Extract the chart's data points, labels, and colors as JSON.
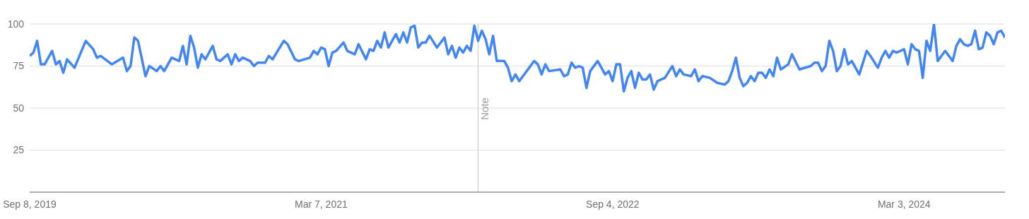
{
  "chart_data": {
    "type": "line",
    "x": [
      "2019-09-08",
      "2019-09-15",
      "2019-09-22",
      "2019-09-29",
      "2019-10-06",
      "2019-10-20",
      "2019-10-27",
      "2019-11-03",
      "2019-11-10",
      "2019-11-17",
      "2019-12-01",
      "2019-12-22",
      "2020-01-05",
      "2020-01-12",
      "2020-01-19",
      "2020-02-09",
      "2020-03-01",
      "2020-03-08",
      "2020-03-15",
      "2020-03-22",
      "2020-03-29",
      "2020-04-12",
      "2020-04-19",
      "2020-05-03",
      "2020-05-10",
      "2020-05-17",
      "2020-05-31",
      "2020-06-14",
      "2020-06-21",
      "2020-06-28",
      "2020-07-05",
      "2020-07-12",
      "2020-07-19",
      "2020-07-26",
      "2020-08-02",
      "2020-08-16",
      "2020-08-23",
      "2020-08-30",
      "2020-09-13",
      "2020-09-20",
      "2020-09-27",
      "2020-10-04",
      "2020-10-11",
      "2020-10-25",
      "2020-11-01",
      "2020-11-08",
      "2020-11-22",
      "2020-11-29",
      "2020-12-06",
      "2020-12-27",
      "2021-01-03",
      "2021-01-17",
      "2021-01-24",
      "2021-02-14",
      "2021-02-21",
      "2021-02-28",
      "2021-03-07",
      "2021-03-14",
      "2021-03-21",
      "2021-03-28",
      "2021-04-04",
      "2021-04-18",
      "2021-04-25",
      "2021-05-09",
      "2021-05-16",
      "2021-05-30",
      "2021-06-06",
      "2021-06-13",
      "2021-06-20",
      "2021-06-27",
      "2021-07-04",
      "2021-07-11",
      "2021-07-25",
      "2021-08-01",
      "2021-08-08",
      "2021-08-15",
      "2021-08-22",
      "2021-08-29",
      "2021-09-05",
      "2021-09-12",
      "2021-09-19",
      "2021-09-26",
      "2021-10-10",
      "2021-10-24",
      "2021-10-31",
      "2021-11-07",
      "2021-11-14",
      "2021-11-21",
      "2021-11-28",
      "2021-12-05",
      "2021-12-12",
      "2021-12-19",
      "2021-12-26",
      "2022-01-02",
      "2022-01-09",
      "2022-01-16",
      "2022-01-23",
      "2022-01-30",
      "2022-02-13",
      "2022-02-20",
      "2022-02-27",
      "2022-03-06",
      "2022-03-13",
      "2022-04-10",
      "2022-04-17",
      "2022-04-24",
      "2022-05-01",
      "2022-05-08",
      "2022-05-29",
      "2022-06-05",
      "2022-06-12",
      "2022-06-19",
      "2022-06-26",
      "2022-07-03",
      "2022-07-10",
      "2022-07-17",
      "2022-07-24",
      "2022-08-07",
      "2022-08-21",
      "2022-08-28",
      "2022-09-04",
      "2022-09-11",
      "2022-09-18",
      "2022-09-25",
      "2022-10-02",
      "2022-10-09",
      "2022-10-16",
      "2022-10-23",
      "2022-10-30",
      "2022-11-06",
      "2022-11-13",
      "2022-11-20",
      "2022-11-27",
      "2022-12-11",
      "2022-12-25",
      "2023-01-01",
      "2023-01-08",
      "2023-01-15",
      "2023-01-29",
      "2023-02-05",
      "2023-02-12",
      "2023-02-19",
      "2023-03-05",
      "2023-03-19",
      "2023-04-02",
      "2023-04-09",
      "2023-04-16",
      "2023-04-23",
      "2023-04-30",
      "2023-05-07",
      "2023-05-14",
      "2023-05-21",
      "2023-05-28",
      "2023-06-04",
      "2023-06-11",
      "2023-06-18",
      "2023-06-25",
      "2023-07-02",
      "2023-07-09",
      "2023-07-16",
      "2023-07-30",
      "2023-08-06",
      "2023-08-20",
      "2023-09-10",
      "2023-09-17",
      "2023-09-24",
      "2023-10-01",
      "2023-10-08",
      "2023-10-15",
      "2023-10-22",
      "2023-10-29",
      "2023-11-05",
      "2023-11-12",
      "2023-11-19",
      "2023-11-26",
      "2023-12-10",
      "2023-12-24",
      "2023-12-31",
      "2024-01-14",
      "2024-01-21",
      "2024-01-28",
      "2024-02-04",
      "2024-02-11",
      "2024-02-18",
      "2024-03-03",
      "2024-03-10",
      "2024-03-17",
      "2024-03-24",
      "2024-03-31",
      "2024-04-07",
      "2024-04-14",
      "2024-04-21",
      "2024-04-28",
      "2024-05-05",
      "2024-05-19",
      "2024-06-02",
      "2024-06-09",
      "2024-06-16",
      "2024-06-23",
      "2024-06-30",
      "2024-07-07",
      "2024-07-14",
      "2024-07-21",
      "2024-07-28",
      "2024-08-04",
      "2024-08-11",
      "2024-08-18",
      "2024-08-25",
      "2024-09-01",
      "2024-09-08"
    ],
    "series": [
      {
        "color": "#4285f4",
        "values": [
          81,
          83,
          90,
          76,
          76,
          84,
          76,
          78,
          71,
          79,
          74,
          90,
          85,
          80,
          81,
          76,
          80,
          72,
          75,
          92,
          90,
          69,
          75,
          72,
          75,
          72,
          80,
          78,
          87,
          76,
          93,
          86,
          74,
          82,
          79,
          87,
          79,
          78,
          82,
          76,
          82,
          78,
          80,
          78,
          75,
          77,
          77,
          81,
          79,
          90,
          88,
          79,
          78,
          80,
          84,
          82,
          86,
          85,
          75,
          83,
          84,
          89,
          84,
          82,
          88,
          79,
          85,
          84,
          90,
          86,
          95,
          86,
          94,
          89,
          95,
          89,
          98,
          99,
          86,
          89,
          89,
          93,
          86,
          92,
          82,
          87,
          80,
          86,
          83,
          87,
          84,
          99,
          90,
          96,
          91,
          82,
          93,
          78,
          78,
          74,
          66,
          70,
          66,
          78,
          76,
          70,
          76,
          72,
          73,
          69,
          70,
          77,
          74,
          75,
          74,
          62,
          72,
          78,
          70,
          72,
          66,
          76,
          76,
          60,
          68,
          72,
          62,
          71,
          67,
          67,
          70,
          61,
          66,
          68,
          75,
          69,
          73,
          70,
          69,
          73,
          66,
          69,
          68,
          65,
          64,
          66,
          72,
          80,
          68,
          63,
          65,
          69,
          66,
          71,
          71,
          68,
          73,
          69,
          80,
          73,
          76,
          82,
          73,
          75,
          77,
          77,
          72,
          75,
          90,
          84,
          72,
          75,
          85,
          76,
          78,
          70,
          84,
          81,
          74,
          80,
          84,
          80,
          84,
          83,
          85,
          76,
          88,
          85,
          84,
          68,
          90,
          84,
          100,
          78,
          84,
          78,
          87,
          91,
          88,
          87,
          88,
          96,
          85,
          86,
          95,
          93,
          88,
          95,
          96,
          92
        ]
      }
    ],
    "xlim": [
      "2019-09-08",
      "2024-09-08"
    ],
    "xticks": [
      {
        "value": "2019-09-08",
        "label": "Sep 8, 2019"
      },
      {
        "value": "2021-03-07",
        "label": "Mar 7, 2021"
      },
      {
        "value": "2022-09-04",
        "label": "Sep 4, 2022"
      },
      {
        "value": "2024-03-03",
        "label": "Mar 3, 2024"
      }
    ],
    "ylim": [
      0,
      100
    ],
    "yticks": [
      {
        "value": 0,
        "label": null
      },
      25,
      50,
      75,
      100
    ],
    "grid": "y",
    "marker": "none",
    "line_style": "solid",
    "ref_lines": [
      {
        "axis": "x",
        "value": "2021-12-26",
        "label": "Note",
        "color": "#cccccc"
      }
    ]
  }
}
